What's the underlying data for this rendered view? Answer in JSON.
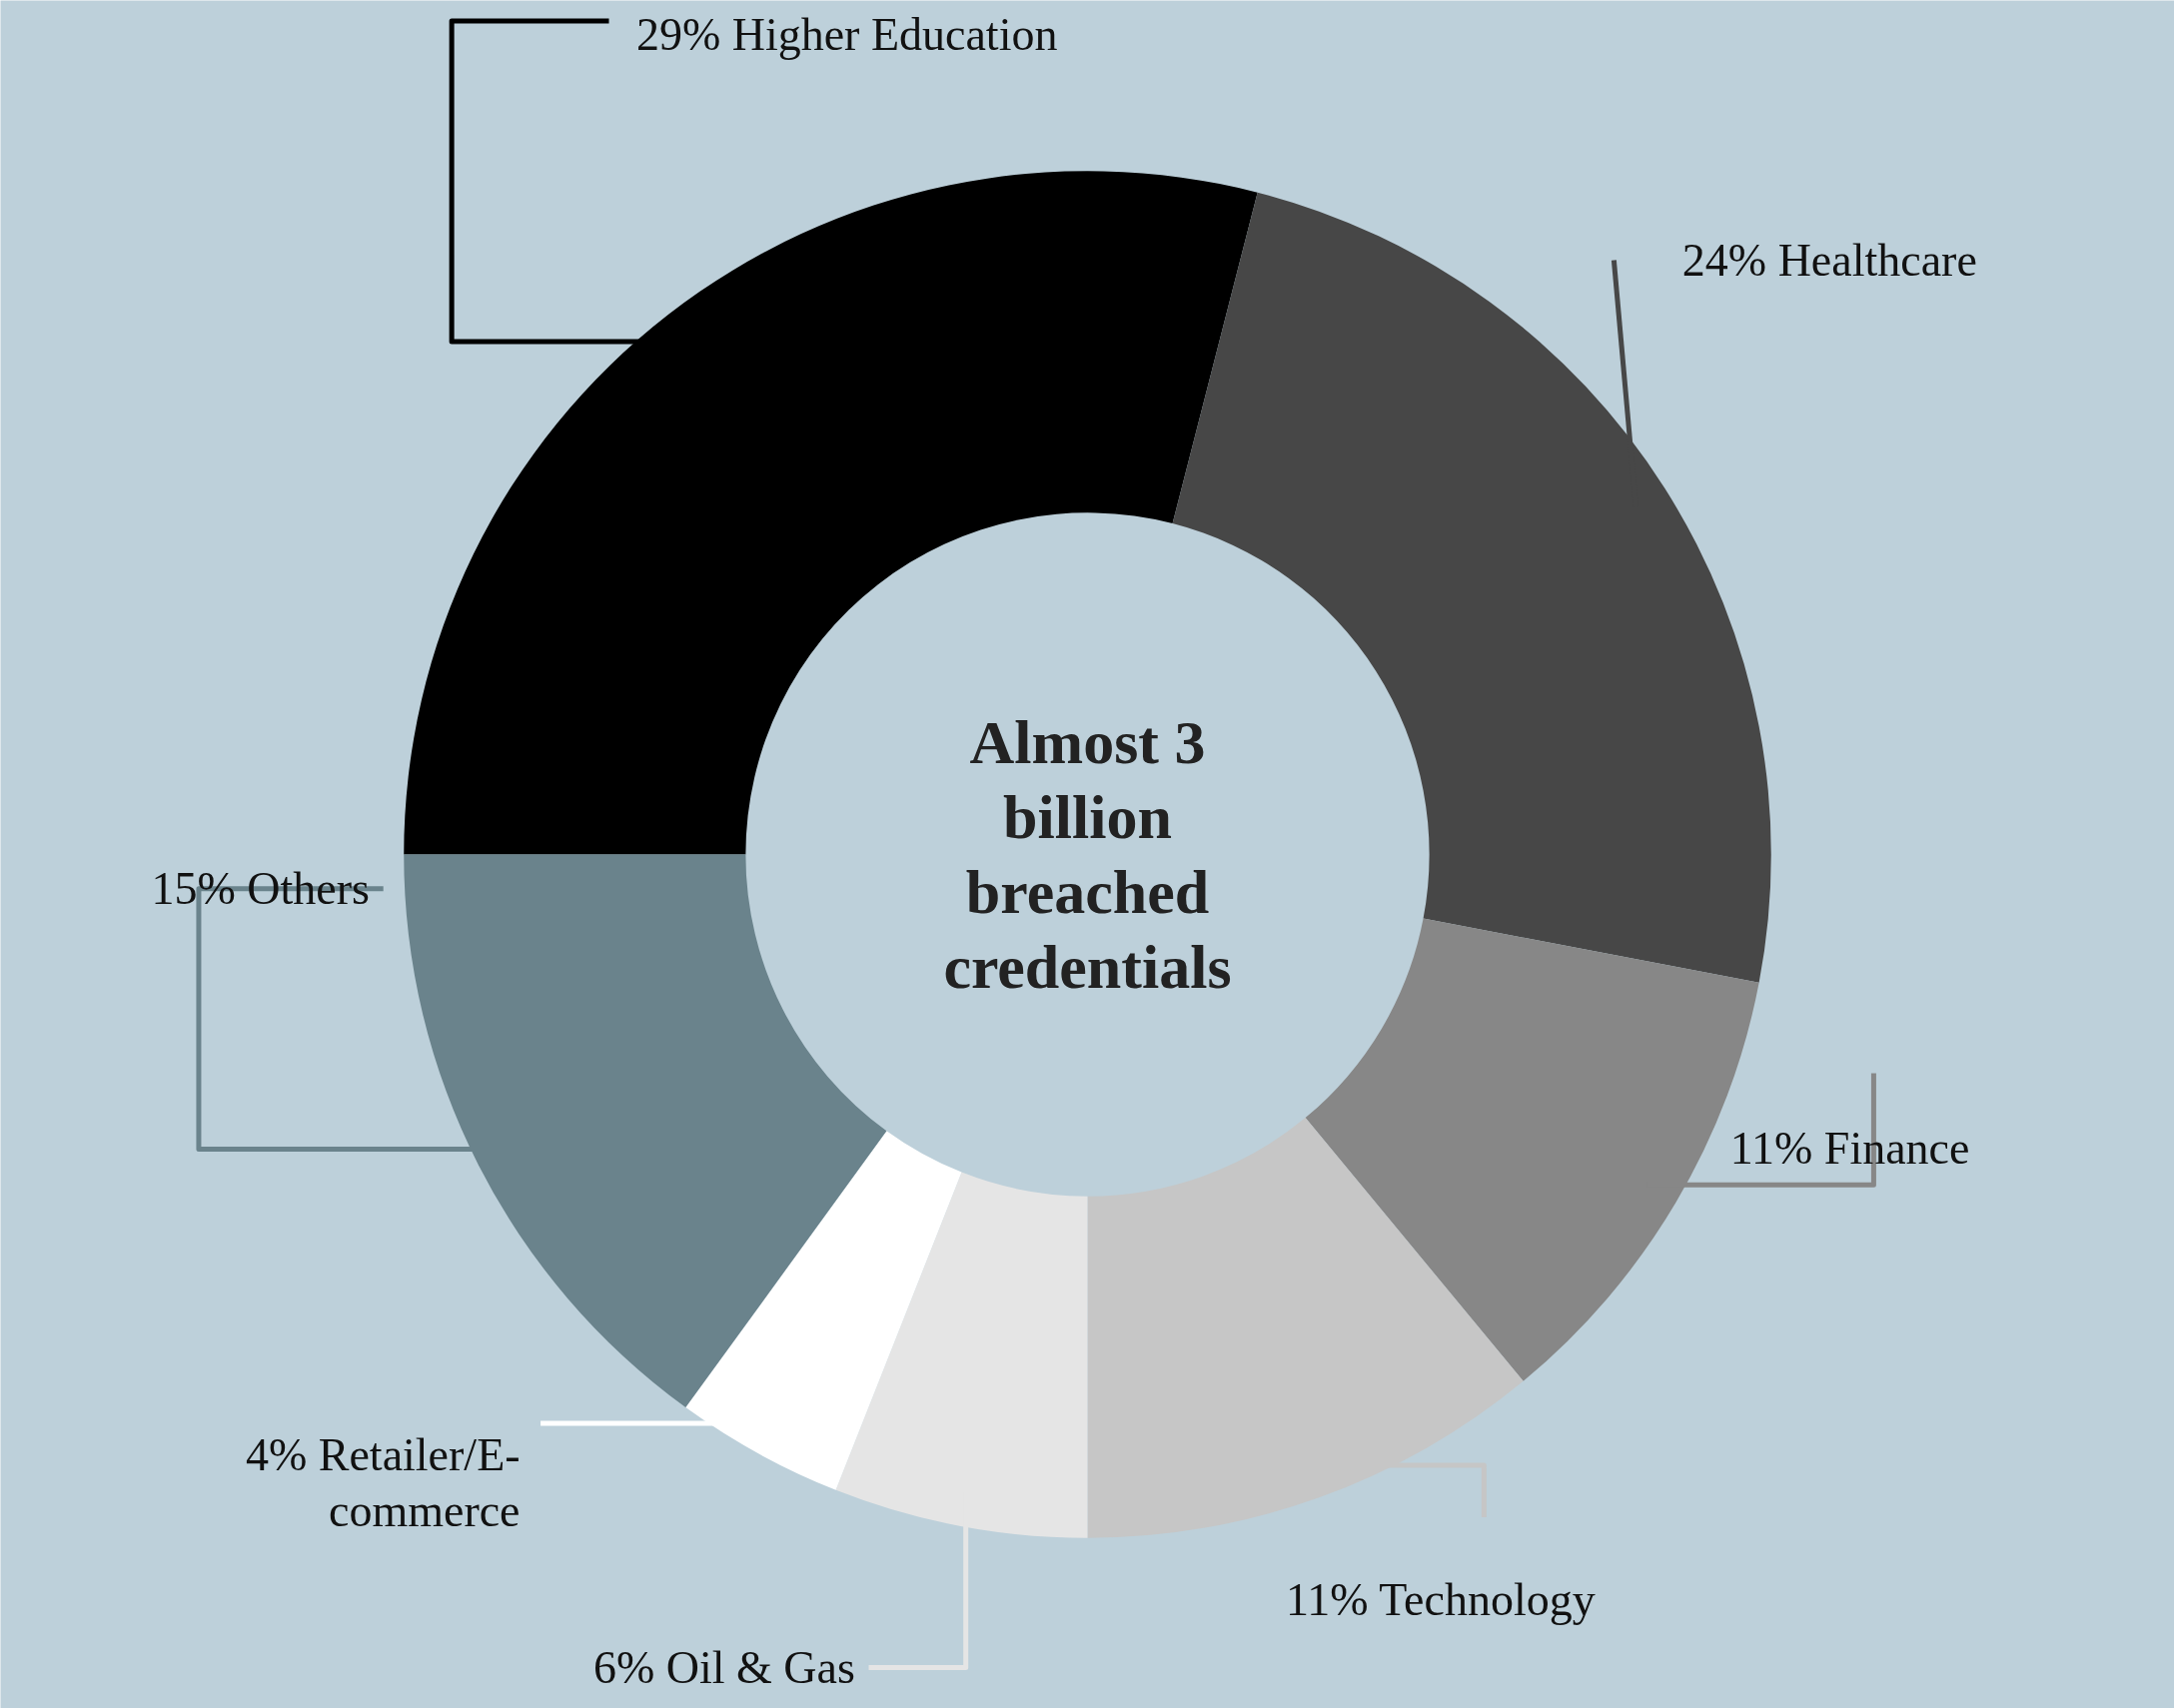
{
  "chart_data": {
    "type": "donut",
    "categories": [
      "Higher Education",
      "Healthcare",
      "Finance",
      "Technology",
      "Oil & Gas",
      "Retailer/E-\ncommerce",
      "Others"
    ],
    "values": [
      29,
      24,
      11,
      11,
      6,
      4,
      15
    ],
    "value_labels": [
      "29%",
      "24%",
      "11%",
      "11%",
      "6%",
      "4%",
      "15%"
    ],
    "colors": [
      "#000000",
      "#474747",
      "#878787",
      "#c6c6c6",
      "#e5e5e5",
      "#ffffff",
      "#6a838c"
    ],
    "annotations": [
      "Almost 3\nbillion\nbreached\ncredentials"
    ]
  }
}
